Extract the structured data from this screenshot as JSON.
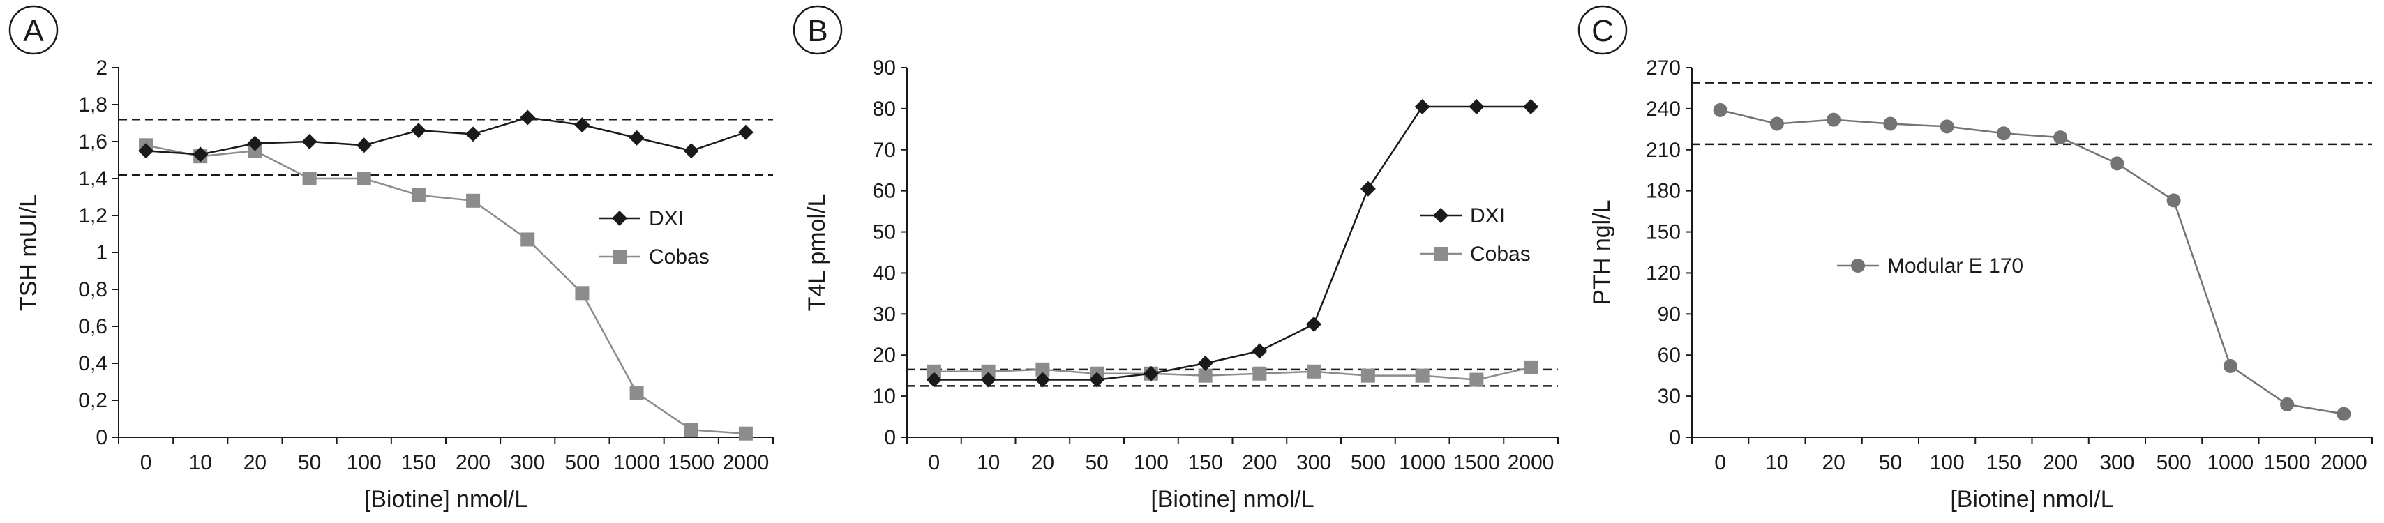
{
  "chart_data": [
    {
      "panel": "A",
      "type": "line",
      "categories": [
        "0",
        "10",
        "20",
        "50",
        "100",
        "150",
        "200",
        "300",
        "500",
        "1000",
        "1500",
        "2000"
      ],
      "xlabel": "[Biotine] nmol/L",
      "ylabel": "TSH mUI/L",
      "ylim": [
        0,
        2
      ],
      "yticks": [
        "0",
        "0,2",
        "0,4",
        "0,6",
        "0,8",
        "1",
        "1,2",
        "1,4",
        "1,6",
        "1,8",
        "2"
      ],
      "reference_lines": [
        1.42,
        1.72
      ],
      "series": [
        {
          "name": "DXI",
          "marker": "diamond",
          "color": "#1a1a1a",
          "values": [
            1.55,
            1.53,
            1.59,
            1.6,
            1.58,
            1.66,
            1.64,
            1.73,
            1.69,
            1.62,
            1.55,
            1.65
          ]
        },
        {
          "name": "Cobas",
          "marker": "square",
          "color": "#8c8c8c",
          "values": [
            1.58,
            1.52,
            1.55,
            1.4,
            1.4,
            1.31,
            1.28,
            1.07,
            0.78,
            0.24,
            0.04,
            0.02
          ]
        }
      ],
      "legend_position": "right-middle",
      "grid": false
    },
    {
      "panel": "B",
      "type": "line",
      "categories": [
        "0",
        "10",
        "20",
        "50",
        "100",
        "150",
        "200",
        "300",
        "500",
        "1000",
        "1500",
        "2000"
      ],
      "xlabel": "[Biotine] nmol/L",
      "ylabel": "T4L pmol/L",
      "ylim": [
        0,
        90
      ],
      "yticks": [
        "0",
        "10",
        "20",
        "30",
        "40",
        "50",
        "60",
        "70",
        "80",
        "90"
      ],
      "reference_lines": [
        12.5,
        16.5
      ],
      "series": [
        {
          "name": "DXI",
          "marker": "diamond",
          "color": "#1a1a1a",
          "values": [
            14,
            14,
            14,
            14,
            15.5,
            18,
            21,
            27.5,
            60.5,
            80.5,
            80.5,
            80.5
          ]
        },
        {
          "name": "Cobas",
          "marker": "square",
          "color": "#8c8c8c",
          "values": [
            16,
            16,
            16.5,
            15.5,
            15.5,
            15,
            15.5,
            16,
            15,
            15,
            14,
            17
          ]
        }
      ],
      "legend_position": "right-middle",
      "grid": false
    },
    {
      "panel": "C",
      "type": "line",
      "categories": [
        "0",
        "10",
        "20",
        "50",
        "100",
        "150",
        "200",
        "300",
        "500",
        "1000",
        "1500",
        "2000"
      ],
      "xlabel": "[Biotine] nmol/L",
      "ylabel": "PTH ngl/L",
      "ylim": [
        0,
        270
      ],
      "yticks": [
        "0",
        "30",
        "60",
        "90",
        "120",
        "150",
        "180",
        "210",
        "240",
        "270"
      ],
      "reference_lines": [
        214,
        259
      ],
      "series": [
        {
          "name": "Modular E 170",
          "marker": "circle",
          "color": "#737373",
          "values": [
            239,
            229,
            232,
            229,
            227,
            222,
            219,
            200,
            173,
            52,
            24,
            17
          ]
        }
      ],
      "legend_position": "left-middle",
      "grid": false
    }
  ]
}
